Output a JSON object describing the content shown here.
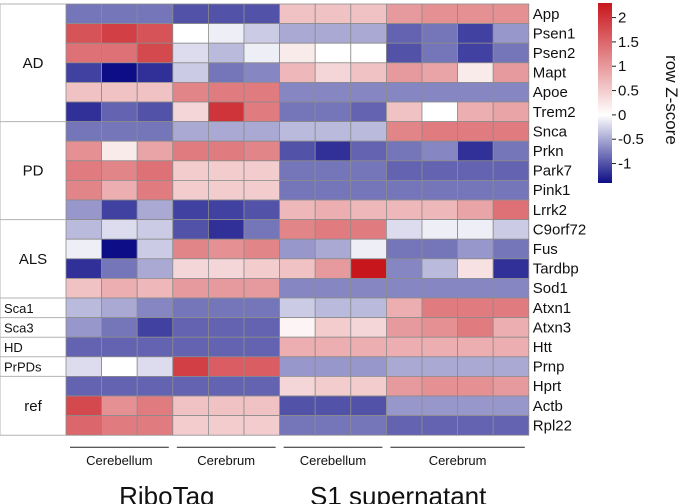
{
  "chart_data": {
    "type": "heatmap",
    "title": "",
    "colorbar": {
      "title": "row Z-score",
      "min": -1.4,
      "max": 2.3,
      "ticks": [
        2,
        1.5,
        1,
        0.5,
        0,
        -0.5,
        -1
      ],
      "tick_labels": [
        "2",
        "1.5",
        "1",
        "0.5",
        "0",
        "-0.5",
        "-1"
      ],
      "low_color": "#0d0d87",
      "mid_color": "#ffffff",
      "high_color": "#c8161d"
    },
    "rows": [
      "App",
      "Psen1",
      "Psen2",
      "Mapt",
      "Apoe",
      "Trem2",
      "Snca",
      "Prkn",
      "Park7",
      "Pink1",
      "Lrrk2",
      "C9orf72",
      "Fus",
      "Tardbp",
      "Sod1",
      "Atxn1",
      "Atxn3",
      "Htt",
      "Prnp",
      "Hprt",
      "Actb",
      "Rpl22"
    ],
    "row_groups": [
      {
        "label": "AD",
        "rows": 6
      },
      {
        "label": "PD",
        "rows": 5
      },
      {
        "label": "ALS",
        "rows": 4
      },
      {
        "label": "Sca1",
        "rows": 1
      },
      {
        "label": "Sca3",
        "rows": 1
      },
      {
        "label": "HD",
        "rows": 1
      },
      {
        "label": "PrPDs",
        "rows": 1
      },
      {
        "label": "ref",
        "rows": 3
      }
    ],
    "column_subgroups": [
      {
        "label": "Cerebellum",
        "columns": 3
      },
      {
        "label": "Cerebrum",
        "columns": 3
      },
      {
        "label": "Cerebellum",
        "columns": 3
      },
      {
        "label": "Cerebrum",
        "columns": 4
      }
    ],
    "column_groups": [
      {
        "label": "RiboTag",
        "columns": 6
      },
      {
        "label": "S1 supernatant",
        "columns": 7
      }
    ],
    "values": [
      [
        -0.8,
        -0.8,
        -0.8,
        -1.0,
        -1.0,
        -1.0,
        0.6,
        0.6,
        0.6,
        1.0,
        1.1,
        1.1,
        1.1
      ],
      [
        1.7,
        1.9,
        1.7,
        0.0,
        -0.1,
        -0.3,
        -0.5,
        -0.5,
        -0.5,
        -0.9,
        -0.8,
        -1.1,
        -0.6
      ],
      [
        1.4,
        1.4,
        1.8,
        -0.2,
        -0.4,
        -0.1,
        0.2,
        0.0,
        0.0,
        -1.0,
        -0.8,
        -1.1,
        -0.8
      ],
      [
        -1.1,
        -1.4,
        -1.2,
        -0.3,
        -0.8,
        -0.7,
        0.7,
        0.4,
        0.6,
        1.0,
        0.9,
        0.2,
        1.0
      ],
      [
        0.6,
        0.6,
        0.6,
        1.2,
        1.3,
        1.3,
        -0.7,
        -0.7,
        -0.7,
        -0.7,
        -0.7,
        -0.7,
        -0.7
      ],
      [
        -1.2,
        -0.9,
        -1.0,
        0.4,
        2.0,
        1.3,
        -0.8,
        -0.8,
        -0.9,
        0.6,
        0.0,
        0.8,
        0.9
      ],
      [
        -0.8,
        -0.8,
        -0.8,
        -0.5,
        -0.5,
        -0.5,
        -0.4,
        -0.4,
        -0.4,
        1.2,
        1.3,
        1.3,
        1.3
      ],
      [
        1.1,
        0.2,
        0.9,
        1.3,
        1.3,
        1.2,
        -1.0,
        -1.2,
        -0.9,
        -0.8,
        -0.7,
        -1.2,
        -0.8
      ],
      [
        1.3,
        1.2,
        1.4,
        0.5,
        0.5,
        0.5,
        -0.8,
        -0.8,
        -0.8,
        -0.9,
        -0.9,
        -0.9,
        -0.9
      ],
      [
        1.2,
        0.8,
        1.3,
        0.5,
        0.5,
        0.5,
        -0.8,
        -0.8,
        -0.8,
        -0.8,
        -0.8,
        -0.8,
        -0.8
      ],
      [
        -0.6,
        -1.1,
        -0.5,
        -1.1,
        -1.1,
        -1.0,
        0.7,
        0.8,
        0.7,
        0.7,
        0.7,
        0.9,
        1.4
      ],
      [
        -0.4,
        -0.2,
        -0.3,
        -1.0,
        -1.2,
        -0.8,
        1.2,
        1.3,
        1.3,
        -0.2,
        -0.1,
        -0.1,
        -0.3
      ],
      [
        -0.1,
        -1.4,
        -0.3,
        1.2,
        1.1,
        1.2,
        -0.6,
        -0.5,
        -0.1,
        -0.8,
        -0.8,
        -0.6,
        -0.8
      ],
      [
        -1.2,
        -0.8,
        -0.5,
        0.4,
        0.4,
        0.5,
        0.6,
        1.0,
        2.3,
        -0.7,
        -0.4,
        0.3,
        -1.2
      ],
      [
        0.6,
        0.8,
        0.7,
        1.0,
        1.0,
        1.0,
        -0.7,
        -0.7,
        -0.7,
        -0.7,
        -0.7,
        -0.7,
        -0.7
      ],
      [
        -0.4,
        -0.5,
        -0.7,
        -0.8,
        -0.8,
        -0.8,
        -0.3,
        -0.4,
        -0.4,
        0.8,
        1.3,
        1.3,
        1.3
      ],
      [
        -0.6,
        -0.8,
        -1.1,
        -0.9,
        -0.9,
        -0.9,
        0.1,
        0.5,
        0.4,
        1.0,
        1.1,
        1.3,
        0.8
      ],
      [
        -0.9,
        -0.9,
        -0.9,
        -0.9,
        -0.9,
        -0.9,
        0.8,
        0.8,
        0.8,
        0.8,
        0.8,
        0.8,
        0.8
      ],
      [
        -0.2,
        0.0,
        -0.2,
        1.9,
        1.6,
        1.6,
        -0.6,
        -0.6,
        -0.6,
        -0.5,
        -0.5,
        -0.5,
        -0.5
      ],
      [
        -0.9,
        -0.9,
        -0.9,
        -0.9,
        -0.9,
        -0.9,
        0.4,
        0.5,
        0.5,
        1.0,
        1.1,
        1.1,
        1.0
      ],
      [
        1.8,
        1.1,
        1.3,
        0.6,
        0.6,
        0.6,
        -1.0,
        -1.0,
        -1.0,
        -0.6,
        -0.6,
        -0.6,
        -0.6
      ],
      [
        1.5,
        1.3,
        1.3,
        0.5,
        0.5,
        0.5,
        -0.8,
        -0.8,
        -0.8,
        -0.9,
        -0.9,
        -0.9,
        -0.9
      ]
    ]
  }
}
